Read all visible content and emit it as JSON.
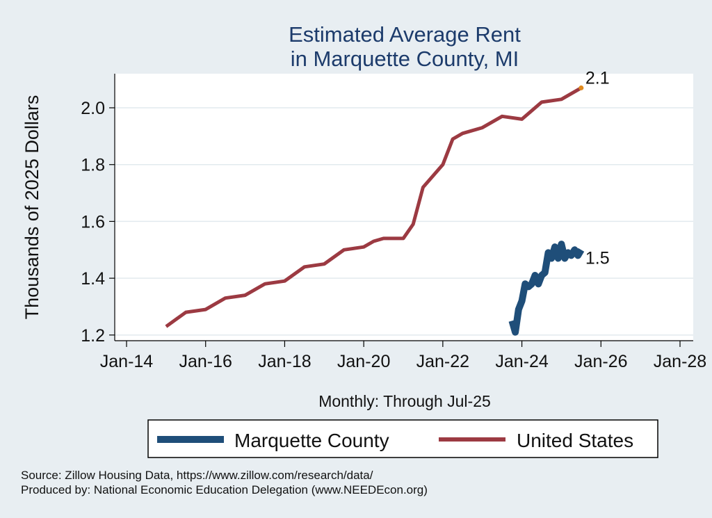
{
  "chart_data": {
    "type": "line",
    "title": [
      "Estimated Average Rent",
      "in Marquette County, MI"
    ],
    "xlabel": "Monthly: Through Jul-25",
    "ylabel": "Thousands of 2025 Dollars",
    "x_ticks": [
      "Jan-14",
      "Jan-16",
      "Jan-18",
      "Jan-20",
      "Jan-22",
      "Jan-24",
      "Jan-26",
      "Jan-28"
    ],
    "y_ticks": [
      "1.2",
      "1.4",
      "1.6",
      "1.8",
      "2.0"
    ],
    "xlim": [
      "2014-01",
      "2028-01"
    ],
    "ylim": [
      1.18,
      2.12
    ],
    "grid": "horizontal",
    "legend": "bottom",
    "series": [
      {
        "name": "Marquette County",
        "color": "#1f4e79",
        "end_label": "1.5",
        "points": [
          [
            "2023-10",
            1.25
          ],
          [
            "2023-11",
            1.21
          ],
          [
            "2023-12",
            1.29
          ],
          [
            "2024-01",
            1.32
          ],
          [
            "2024-02",
            1.38
          ],
          [
            "2024-03",
            1.37
          ],
          [
            "2024-04",
            1.38
          ],
          [
            "2024-05",
            1.41
          ],
          [
            "2024-06",
            1.38
          ],
          [
            "2024-07",
            1.41
          ],
          [
            "2024-08",
            1.42
          ],
          [
            "2024-09",
            1.49
          ],
          [
            "2024-10",
            1.47
          ],
          [
            "2024-11",
            1.51
          ],
          [
            "2024-12",
            1.47
          ],
          [
            "2025-01",
            1.52
          ],
          [
            "2025-02",
            1.47
          ],
          [
            "2025-03",
            1.49
          ],
          [
            "2025-04",
            1.48
          ],
          [
            "2025-05",
            1.5
          ],
          [
            "2025-06",
            1.48
          ],
          [
            "2025-07",
            1.5
          ]
        ]
      },
      {
        "name": "United States",
        "color": "#9c3a42",
        "end_label": "2.1",
        "points": [
          [
            "2015-01",
            1.23
          ],
          [
            "2015-07",
            1.28
          ],
          [
            "2016-01",
            1.29
          ],
          [
            "2016-07",
            1.33
          ],
          [
            "2017-01",
            1.34
          ],
          [
            "2017-07",
            1.38
          ],
          [
            "2018-01",
            1.39
          ],
          [
            "2018-07",
            1.44
          ],
          [
            "2019-01",
            1.45
          ],
          [
            "2019-07",
            1.5
          ],
          [
            "2020-01",
            1.51
          ],
          [
            "2020-04",
            1.53
          ],
          [
            "2020-07",
            1.54
          ],
          [
            "2021-01",
            1.54
          ],
          [
            "2021-04",
            1.59
          ],
          [
            "2021-07",
            1.72
          ],
          [
            "2022-01",
            1.8
          ],
          [
            "2022-04",
            1.89
          ],
          [
            "2022-07",
            1.91
          ],
          [
            "2023-01",
            1.93
          ],
          [
            "2023-07",
            1.97
          ],
          [
            "2024-01",
            1.96
          ],
          [
            "2024-07",
            2.02
          ],
          [
            "2025-01",
            2.03
          ],
          [
            "2025-07",
            2.07
          ]
        ]
      }
    ]
  },
  "notes": {
    "source": "Source: Zillow Housing Data, https://www.zillow.com/research/data/",
    "produced_by": "Produced by: National Economic Education Delegation (www.NEEDEcon.org)"
  }
}
